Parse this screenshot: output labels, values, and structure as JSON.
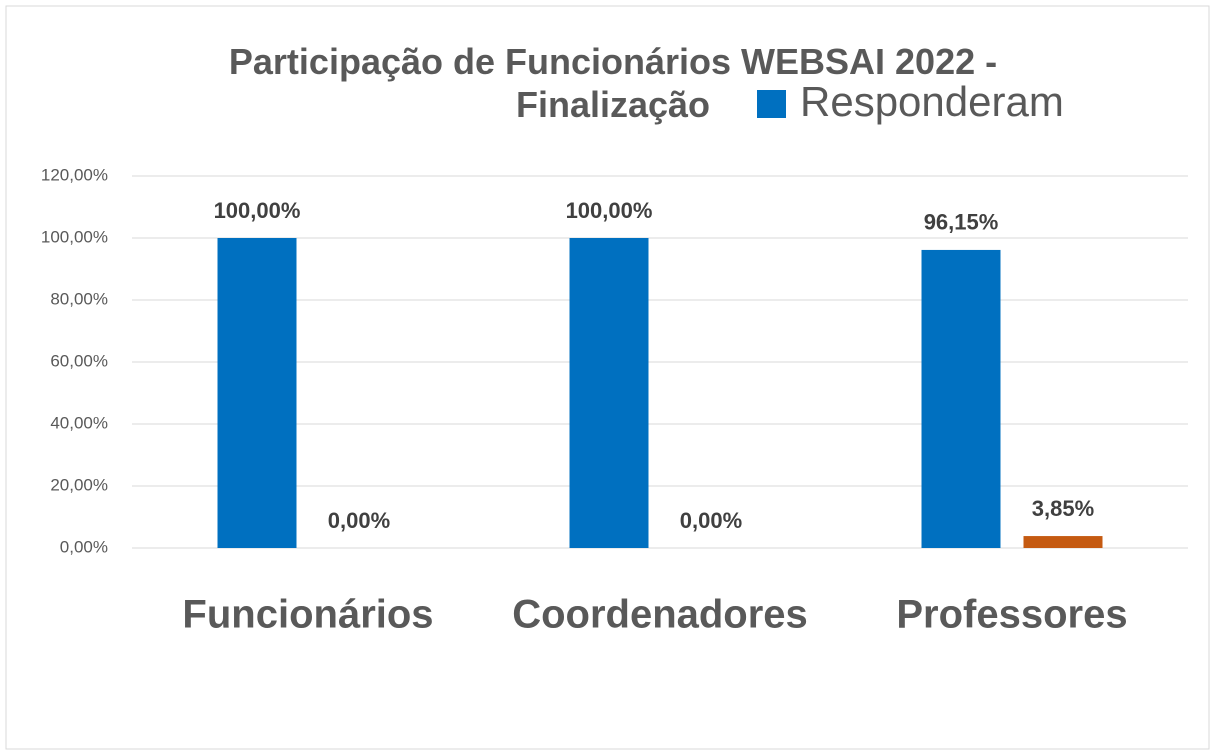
{
  "chart_data": {
    "type": "bar",
    "title": "Participação de Funcionários WEBSAI 2022 - Finalização",
    "categories": [
      "Funcionários",
      "Coordenadores",
      "Professores"
    ],
    "series": [
      {
        "name": "Responderam",
        "color": "#0070c0",
        "values": [
          100,
          100,
          96.15
        ],
        "value_labels": [
          "100,00%",
          "100,00%",
          "96,15%"
        ]
      },
      {
        "color": "#c55a11",
        "values": [
          0,
          0,
          3.85
        ],
        "value_labels": [
          "0,00%",
          "0,00%",
          "3,85%"
        ]
      }
    ],
    "ylim": [
      0,
      120
    ],
    "yticks": [
      {
        "value": 0,
        "label": "0,00%"
      },
      {
        "value": 20,
        "label": "20,00%"
      },
      {
        "value": 40,
        "label": "40,00%"
      },
      {
        "value": 60,
        "label": "60,00%"
      },
      {
        "value": 80,
        "label": "80,00%"
      },
      {
        "value": 100,
        "label": "100,00%"
      },
      {
        "value": 120,
        "label": "120,00%"
      }
    ],
    "grid": true,
    "legend": "top"
  }
}
